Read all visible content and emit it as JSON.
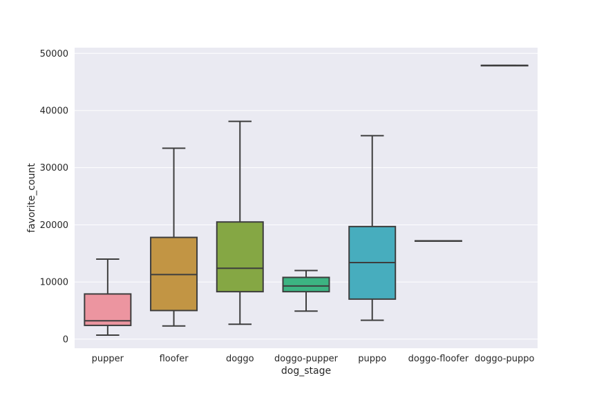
{
  "chart_data": {
    "type": "box",
    "title": "",
    "xlabel": "dog_stage",
    "ylabel": "favorite_count",
    "ylim": [
      -1600,
      51000
    ],
    "yticks": [
      0,
      10000,
      20000,
      30000,
      40000,
      50000
    ],
    "grid": true,
    "categories": [
      "pupper",
      "floofer",
      "doggo",
      "doggo-pupper",
      "puppo",
      "doggo-floofer",
      "doggo-puppo"
    ],
    "boxes": [
      {
        "category": "pupper",
        "whisker_low": 700,
        "q1": 2400,
        "median": 3200,
        "q3": 7900,
        "whisker_high": 14000,
        "color": "#ec95a0"
      },
      {
        "category": "floofer",
        "whisker_low": 2300,
        "q1": 5000,
        "median": 11300,
        "q3": 17800,
        "whisker_high": 33400,
        "color": "#c29544"
      },
      {
        "category": "doggo",
        "whisker_low": 2600,
        "q1": 8300,
        "median": 12400,
        "q3": 20500,
        "whisker_high": 38100,
        "color": "#85a744"
      },
      {
        "category": "doggo-pupper",
        "whisker_low": 4900,
        "q1": 8300,
        "median": 9300,
        "q3": 10800,
        "whisker_high": 12000,
        "color": "#3cb382"
      },
      {
        "category": "puppo",
        "whisker_low": 3300,
        "q1": 7000,
        "median": 13400,
        "q3": 19700,
        "whisker_high": 35600,
        "color": "#47adbe"
      },
      {
        "category": "doggo-floofer",
        "whisker_low": 17200,
        "q1": 17200,
        "median": 17200,
        "q3": 17200,
        "whisker_high": 17200,
        "color": "#6aa3e0"
      },
      {
        "category": "doggo-puppo",
        "whisker_low": 47900,
        "q1": 47900,
        "median": 47900,
        "q3": 47900,
        "whisker_high": 47900,
        "color": "#c9a0e6"
      }
    ],
    "colors": {
      "plot_background": "#eaeaf2",
      "grid": "#ffffff",
      "line": "#3d3d3d"
    }
  }
}
